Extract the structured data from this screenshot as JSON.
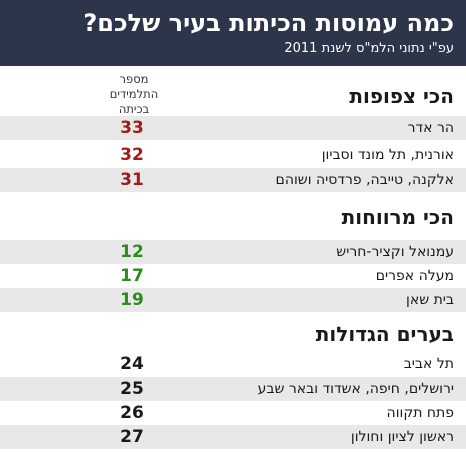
{
  "title": "כמה עמוסות הכיתות בעיר שלכם?",
  "subtitle": "עפ\"י נתוני הלמ\"ס לשנת 2011",
  "column_header": [
    "מספר",
    "התלמידים",
    "בכיתה"
  ],
  "colors": {
    "header_bg": "#2c3549",
    "crowded": "#a11b1b",
    "spacious": "#2e8b1e",
    "big_cities": "#1a1a1a",
    "row_shade": "#e8e8e8"
  },
  "sections": [
    {
      "title": "הכי צפופות",
      "rows": [
        {
          "label": "הר אדר",
          "value": "33"
        },
        {
          "label": "אורנית, תל מונד וסביון",
          "value": "32"
        },
        {
          "label": "אלקנה, טייבה, פרדסיה ושוהם",
          "value": "31"
        }
      ]
    },
    {
      "title": "הכי מרווחות",
      "rows": [
        {
          "label": "עמנואל וקציר-חריש",
          "value": "12"
        },
        {
          "label": "מעלה אפרים",
          "value": "17"
        },
        {
          "label": "בית שאן",
          "value": "19"
        }
      ]
    },
    {
      "title": "בערים הגדולות",
      "rows": [
        {
          "label": "תל אביב",
          "value": "24"
        },
        {
          "label": "ירושלים, חיפה, אשדוד ובאר שבע",
          "value": "25"
        },
        {
          "label": "פתח תקווה",
          "value": "26"
        },
        {
          "label": "ראשון לציון וחולון",
          "value": "27"
        }
      ]
    }
  ]
}
